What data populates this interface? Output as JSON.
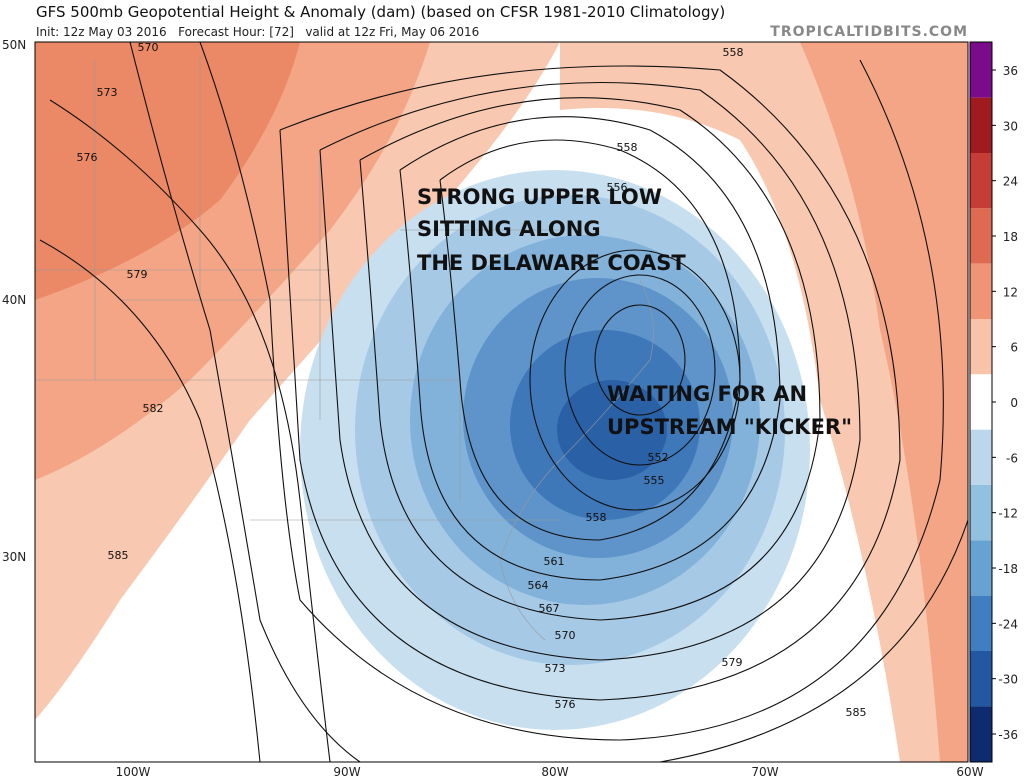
{
  "header": {
    "title": "GFS 500mb Geopotential Height & Anomaly (dam) (based on CFSR 1981-2010 Climatology)",
    "subtitle": "Init: 12z May 03 2016   Forecast Hour: [72]   valid at 12z Fri, May 06 2016",
    "watermark": "TROPICALTIDBITS.COM"
  },
  "map": {
    "lat_labels": [
      "50N",
      "40N",
      "30N"
    ],
    "lon_labels": [
      "100W",
      "90W",
      "80W",
      "70W",
      "60W"
    ],
    "contour_labels": [
      "570",
      "573",
      "576",
      "579",
      "582",
      "585",
      "558",
      "558",
      "556",
      "552",
      "555",
      "558",
      "561",
      "564",
      "567",
      "570",
      "573",
      "576",
      "579",
      "585"
    ],
    "annotations": [
      {
        "lines": [
          "STRONG UPPER LOW",
          "SITTING ALONG",
          "THE DELAWARE COAST"
        ]
      },
      {
        "lines": [
          "WAITING FOR AN",
          "UPSTREAM \"KICKER\""
        ]
      }
    ]
  },
  "colorbar": {
    "ticks": [
      36,
      30,
      24,
      18,
      12,
      6,
      0,
      -6,
      -12,
      -18,
      -24,
      -30,
      -36
    ],
    "colors": [
      "#7a0b8a",
      "#a01b20",
      "#c63c36",
      "#de6a52",
      "#ef9474",
      "#f8c3a9",
      "#ffffff",
      "#bcd7eb",
      "#92c0df",
      "#66a3d1",
      "#3f7fc0",
      "#2257a2",
      "#0d2b6e"
    ]
  }
}
